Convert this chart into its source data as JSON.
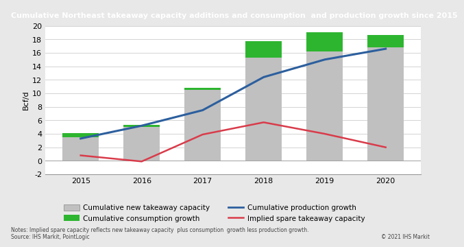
{
  "title": "Cumulative Northeast takeaway capacity additions and consumption  and production growth since 2015",
  "ylabel": "Bcf/d",
  "years": [
    2015,
    2016,
    2017,
    2018,
    2019,
    2020
  ],
  "cumulative_takeaway": [
    3.5,
    5.0,
    10.5,
    15.3,
    16.2,
    16.8
  ],
  "cumulative_consumption_growth": [
    0.6,
    0.3,
    0.3,
    2.4,
    2.8,
    1.8
  ],
  "cumulative_production_growth": [
    3.3,
    5.2,
    7.5,
    12.4,
    15.0,
    16.6
  ],
  "implied_spare": [
    0.8,
    -0.1,
    3.9,
    5.7,
    4.0,
    2.0
  ],
  "bar_gray": "#c0c0c0",
  "bar_green": "#2db530",
  "line_blue": "#2c5f9e",
  "line_red": "#d93b4a",
  "ylim": [
    -2,
    20
  ],
  "yticks": [
    -2,
    0,
    2,
    4,
    6,
    8,
    10,
    12,
    14,
    16,
    18,
    20
  ],
  "title_bg": "#a8a8a8",
  "title_color": "#ffffff",
  "plot_bg": "#ffffff",
  "outer_bg": "#e8e8e8",
  "note": "Notes: Implied spare capacity reflects new takeaway capacity  plus consumption  growth less production growth.",
  "source": "Source: IHS Markit, PointLogic",
  "copyright": "© 2021 IHS Markit",
  "legend": {
    "gray_label": "Cumulative new takeaway capacity",
    "green_label": "Cumulative consumption growth",
    "blue_label": "Cumulative production growth",
    "red_label": "Implied spare takeaway capacity"
  }
}
